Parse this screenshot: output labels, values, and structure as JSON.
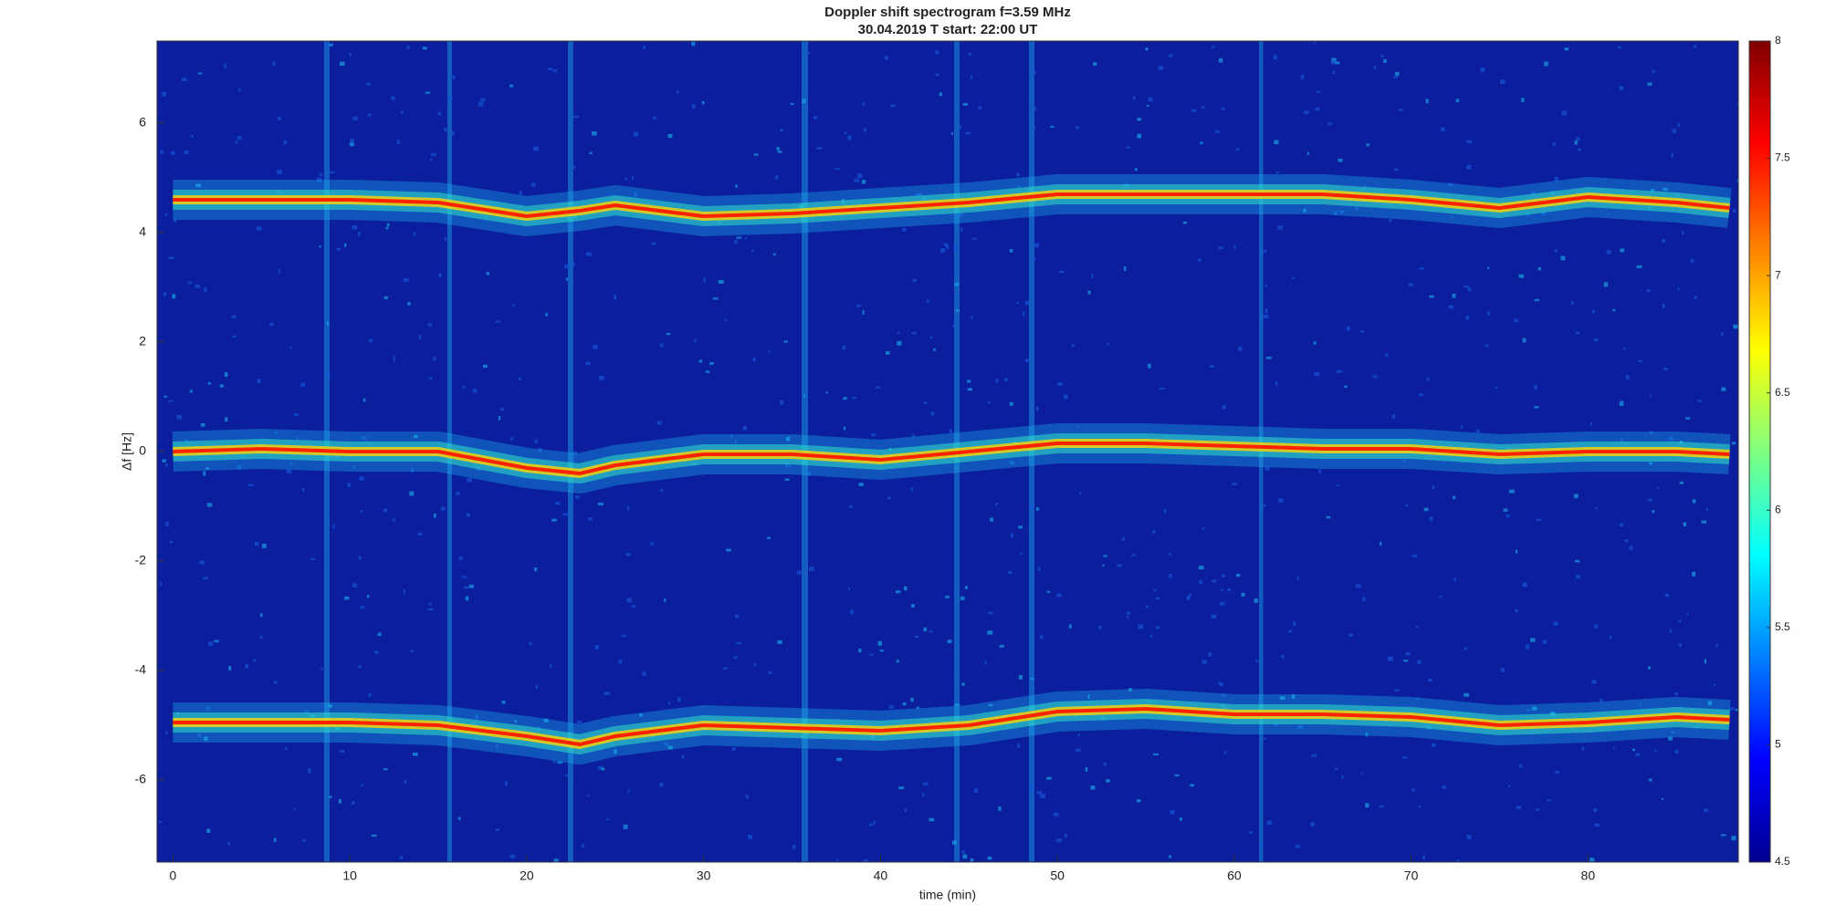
{
  "chart_data": {
    "type": "spectrogram",
    "title": "Doppler shift spectrogram f=3.59 MHz",
    "subtitle": "30.04.2019   T start: 22:00 UT",
    "x_label": "time (min)",
    "y_label": "Δf [Hz]",
    "xlim": [
      -0.9,
      88.5
    ],
    "ylim": [
      -7.5,
      7.5
    ],
    "xticks": [
      0,
      10,
      20,
      30,
      40,
      50,
      60,
      70,
      80
    ],
    "yticks": [
      -6,
      -4,
      -2,
      0,
      2,
      4,
      6
    ],
    "background": "#0b1f9e",
    "x": [
      0,
      5,
      10,
      15,
      20,
      23,
      25,
      30,
      35,
      40,
      45,
      50,
      55,
      60,
      65,
      70,
      75,
      80,
      85,
      88
    ],
    "series": [
      {
        "color": "#ff2200",
        "values": [
          4.6,
          4.6,
          4.6,
          4.55,
          4.3,
          4.4,
          4.5,
          4.3,
          4.35,
          4.45,
          4.55,
          4.7,
          4.7,
          4.7,
          4.7,
          4.6,
          4.45,
          4.65,
          4.55,
          4.45
        ]
      },
      {
        "color": "#ff2200",
        "values": [
          0,
          0.05,
          0,
          0,
          -0.3,
          -0.4,
          -0.25,
          -0.05,
          -0.05,
          -0.15,
          0,
          0.15,
          0.15,
          0.1,
          0.05,
          0.05,
          -0.05,
          0,
          0,
          -0.05
        ]
      },
      {
        "color": "#ff2200",
        "values": [
          -4.95,
          -4.95,
          -4.95,
          -5.0,
          -5.2,
          -5.35,
          -5.2,
          -5.0,
          -5.05,
          -5.1,
          -5.0,
          -4.75,
          -4.7,
          -4.8,
          -4.8,
          -4.85,
          -5.0,
          -4.95,
          -4.85,
          -4.9
        ]
      }
    ],
    "colorbar": {
      "colormap": "jet",
      "lim": [
        4.5,
        8
      ],
      "ticks": [
        4.5,
        5,
        5.5,
        6,
        6.5,
        7,
        7.5,
        8
      ]
    }
  }
}
